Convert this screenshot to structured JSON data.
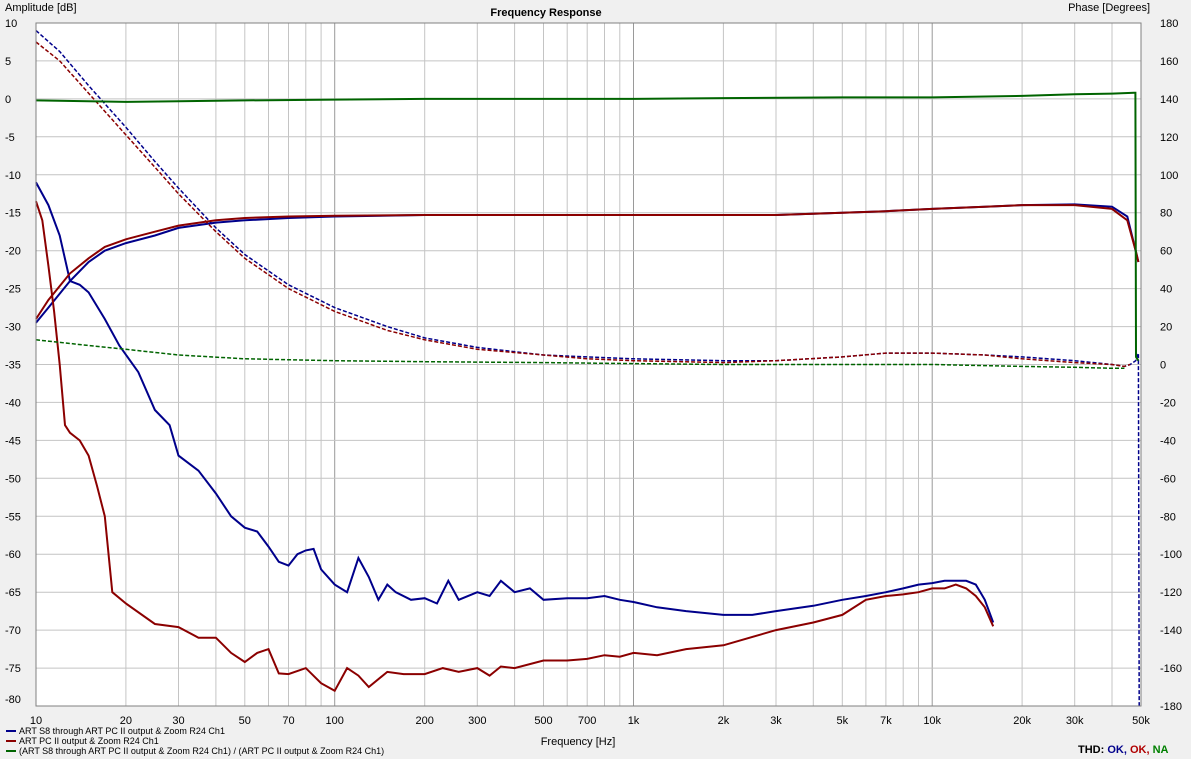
{
  "chart_data": {
    "type": "line",
    "title": "Frequency Response",
    "xlabel": "Frequency [Hz]",
    "ylabel_left": "Amplitude [dB]",
    "ylabel_right": "Phase [Degrees]",
    "x_scale": "log",
    "xlim": [
      10,
      50000
    ],
    "ylim_left": [
      -80,
      10
    ],
    "ylim_right": [
      -180,
      180
    ],
    "grid": true,
    "legend_position": "bottom-left",
    "x_tick_values": [
      10,
      20,
      30,
      50,
      70,
      100,
      200,
      300,
      500,
      700,
      1000,
      2000,
      3000,
      5000,
      7000,
      10000,
      20000,
      30000,
      50000
    ],
    "x_tick_labels": [
      "10",
      "20",
      "30",
      "50",
      "70",
      "100",
      "200",
      "300",
      "500",
      "700",
      "1k",
      "2k",
      "3k",
      "5k",
      "7k",
      "10k",
      "20k",
      "30k",
      "50k"
    ],
    "y_left_ticks": [
      10,
      5,
      0,
      -5,
      -10,
      -15,
      -20,
      -25,
      -30,
      -35,
      -40,
      -45,
      -50,
      -55,
      -60,
      -65,
      -70,
      -75
    ],
    "y_left_bottom_label": "-80",
    "y_right_ticks": [
      180,
      160,
      140,
      120,
      100,
      80,
      60,
      40,
      20,
      0,
      -20,
      -40,
      -60,
      -80,
      -100,
      -120,
      -140,
      -160,
      -180
    ],
    "series": [
      {
        "name": "ART S8 through ART PC II output & Zoom R24 Ch1",
        "color": "#00008b",
        "magnitude": [
          [
            10,
            -29.5
          ],
          [
            11,
            -27.5
          ],
          [
            13,
            -24
          ],
          [
            15,
            -21.5
          ],
          [
            17,
            -20
          ],
          [
            20,
            -19
          ],
          [
            25,
            -18
          ],
          [
            30,
            -17
          ],
          [
            40,
            -16.3
          ],
          [
            50,
            -16
          ],
          [
            70,
            -15.7
          ],
          [
            100,
            -15.5
          ],
          [
            200,
            -15.3
          ],
          [
            500,
            -15.3
          ],
          [
            1000,
            -15.3
          ],
          [
            2000,
            -15.3
          ],
          [
            3000,
            -15.3
          ],
          [
            5000,
            -15
          ],
          [
            7000,
            -14.8
          ],
          [
            10000,
            -14.5
          ],
          [
            15000,
            -14.2
          ],
          [
            20000,
            -14
          ],
          [
            30000,
            -13.9
          ],
          [
            40000,
            -14.2
          ],
          [
            45000,
            -15.5
          ],
          [
            48000,
            -20
          ],
          [
            49000,
            -21.5
          ]
        ],
        "phase": [
          [
            10,
            176
          ],
          [
            12,
            165
          ],
          [
            15,
            147
          ],
          [
            20,
            125
          ],
          [
            25,
            107
          ],
          [
            30,
            93
          ],
          [
            40,
            72
          ],
          [
            50,
            58
          ],
          [
            70,
            42
          ],
          [
            100,
            30
          ],
          [
            150,
            20
          ],
          [
            200,
            14
          ],
          [
            300,
            9
          ],
          [
            500,
            5
          ],
          [
            700,
            4
          ],
          [
            1000,
            3
          ],
          [
            2000,
            2
          ],
          [
            3000,
            2
          ],
          [
            5000,
            4
          ],
          [
            7000,
            6
          ],
          [
            10000,
            6
          ],
          [
            15000,
            5
          ],
          [
            20000,
            4
          ],
          [
            30000,
            2
          ],
          [
            40000,
            0
          ],
          [
            44000,
            -1
          ],
          [
            46000,
            0
          ],
          [
            48000,
            2
          ],
          [
            49000,
            6
          ],
          [
            49300,
            -180
          ]
        ],
        "distortion": [
          [
            10,
            -11
          ],
          [
            11,
            -14
          ],
          [
            12,
            -18
          ],
          [
            13,
            -24
          ],
          [
            14,
            -24.5
          ],
          [
            15,
            -25.5
          ],
          [
            17,
            -29
          ],
          [
            19,
            -32.5
          ],
          [
            22,
            -36
          ],
          [
            25,
            -41
          ],
          [
            28,
            -43
          ],
          [
            30,
            -47
          ],
          [
            35,
            -49
          ],
          [
            40,
            -52
          ],
          [
            45,
            -55
          ],
          [
            50,
            -56.5
          ],
          [
            55,
            -57
          ],
          [
            60,
            -59
          ],
          [
            65,
            -61
          ],
          [
            70,
            -61.5
          ],
          [
            75,
            -60
          ],
          [
            80,
            -59.5
          ],
          [
            85,
            -59.3
          ],
          [
            90,
            -62
          ],
          [
            100,
            -64
          ],
          [
            110,
            -65
          ],
          [
            120,
            -60.5
          ],
          [
            130,
            -63
          ],
          [
            140,
            -66
          ],
          [
            150,
            -64
          ],
          [
            160,
            -65
          ],
          [
            180,
            -66
          ],
          [
            200,
            -65.8
          ],
          [
            220,
            -66.5
          ],
          [
            240,
            -63.5
          ],
          [
            260,
            -66
          ],
          [
            300,
            -65
          ],
          [
            330,
            -65.5
          ],
          [
            360,
            -63.5
          ],
          [
            400,
            -65
          ],
          [
            450,
            -64.5
          ],
          [
            500,
            -66
          ],
          [
            600,
            -65.8
          ],
          [
            700,
            -65.8
          ],
          [
            800,
            -65.5
          ],
          [
            900,
            -66
          ],
          [
            1000,
            -66.3
          ],
          [
            1200,
            -67
          ],
          [
            1500,
            -67.5
          ],
          [
            2000,
            -68
          ],
          [
            2500,
            -68
          ],
          [
            3000,
            -67.5
          ],
          [
            4000,
            -66.8
          ],
          [
            5000,
            -66
          ],
          [
            6000,
            -65.5
          ],
          [
            7000,
            -65
          ],
          [
            8000,
            -64.5
          ],
          [
            9000,
            -64
          ],
          [
            10000,
            -63.8
          ],
          [
            11000,
            -63.5
          ],
          [
            12000,
            -63.5
          ],
          [
            13000,
            -63.5
          ],
          [
            14000,
            -64
          ],
          [
            15000,
            -66
          ],
          [
            16000,
            -69
          ]
        ]
      },
      {
        "name": "ART PC II output & Zoom R24 Ch1",
        "color": "#8b0000",
        "magnitude": [
          [
            10,
            -29
          ],
          [
            11,
            -26.5
          ],
          [
            13,
            -23
          ],
          [
            15,
            -21
          ],
          [
            17,
            -19.5
          ],
          [
            20,
            -18.5
          ],
          [
            25,
            -17.5
          ],
          [
            30,
            -16.7
          ],
          [
            40,
            -16
          ],
          [
            50,
            -15.7
          ],
          [
            70,
            -15.5
          ],
          [
            100,
            -15.4
          ],
          [
            200,
            -15.3
          ],
          [
            500,
            -15.3
          ],
          [
            1000,
            -15.3
          ],
          [
            2000,
            -15.3
          ],
          [
            3000,
            -15.3
          ],
          [
            5000,
            -15
          ],
          [
            7000,
            -14.8
          ],
          [
            10000,
            -14.5
          ],
          [
            15000,
            -14.2
          ],
          [
            20000,
            -14
          ],
          [
            30000,
            -14
          ],
          [
            40000,
            -14.5
          ],
          [
            45000,
            -16
          ],
          [
            48000,
            -20
          ],
          [
            49000,
            -21.5
          ]
        ],
        "phase": [
          [
            10,
            170
          ],
          [
            12,
            160
          ],
          [
            15,
            143
          ],
          [
            20,
            121
          ],
          [
            25,
            104
          ],
          [
            30,
            90
          ],
          [
            40,
            70
          ],
          [
            50,
            56
          ],
          [
            70,
            40
          ],
          [
            100,
            28
          ],
          [
            150,
            18
          ],
          [
            200,
            13
          ],
          [
            300,
            8
          ],
          [
            500,
            5
          ],
          [
            700,
            3
          ],
          [
            1000,
            2
          ],
          [
            2000,
            1
          ],
          [
            3000,
            2
          ],
          [
            5000,
            4
          ],
          [
            7000,
            6
          ],
          [
            10000,
            6
          ],
          [
            15000,
            5
          ],
          [
            20000,
            3
          ],
          [
            30000,
            1
          ],
          [
            40000,
            0
          ],
          [
            44000,
            -1
          ],
          [
            46000,
            0
          ]
        ],
        "distortion": [
          [
            10,
            -13.5
          ],
          [
            10.5,
            -16
          ],
          [
            11,
            -22
          ],
          [
            11.5,
            -28
          ],
          [
            12,
            -35
          ],
          [
            12.5,
            -43
          ],
          [
            13,
            -44
          ],
          [
            14,
            -45
          ],
          [
            15,
            -47
          ],
          [
            16,
            -51
          ],
          [
            17,
            -55
          ],
          [
            18,
            -65
          ],
          [
            20,
            -66.5
          ],
          [
            25,
            -69.2
          ],
          [
            30,
            -69.6
          ],
          [
            35,
            -71
          ],
          [
            40,
            -71
          ],
          [
            45,
            -73
          ],
          [
            50,
            -74.2
          ],
          [
            55,
            -73
          ],
          [
            60,
            -72.5
          ],
          [
            65,
            -75.7
          ],
          [
            70,
            -75.8
          ],
          [
            80,
            -75
          ],
          [
            90,
            -77
          ],
          [
            100,
            -78
          ],
          [
            110,
            -75
          ],
          [
            120,
            -76
          ],
          [
            130,
            -77.5
          ],
          [
            150,
            -75.5
          ],
          [
            170,
            -75.8
          ],
          [
            200,
            -75.8
          ],
          [
            230,
            -75
          ],
          [
            260,
            -75.5
          ],
          [
            300,
            -75
          ],
          [
            330,
            -76
          ],
          [
            360,
            -74.8
          ],
          [
            400,
            -75
          ],
          [
            500,
            -74
          ],
          [
            600,
            -74
          ],
          [
            700,
            -73.8
          ],
          [
            800,
            -73.3
          ],
          [
            900,
            -73.5
          ],
          [
            1000,
            -73
          ],
          [
            1200,
            -73.3
          ],
          [
            1500,
            -72.5
          ],
          [
            2000,
            -72
          ],
          [
            3000,
            -70
          ],
          [
            4000,
            -69
          ],
          [
            5000,
            -68
          ],
          [
            6000,
            -66
          ],
          [
            7000,
            -65.5
          ],
          [
            8000,
            -65.3
          ],
          [
            9000,
            -65
          ],
          [
            10000,
            -64.5
          ],
          [
            11000,
            -64.5
          ],
          [
            12000,
            -64
          ],
          [
            13000,
            -64.5
          ],
          [
            14000,
            -65.5
          ],
          [
            15000,
            -67
          ],
          [
            16000,
            -69.5
          ]
        ]
      },
      {
        "name": "(ART S8 through ART PC II output & Zoom R24 Ch1) / (ART PC II output & Zoom R24 Ch1)",
        "color": "#006400",
        "magnitude": [
          [
            10,
            -0.2
          ],
          [
            20,
            -0.4
          ],
          [
            30,
            -0.3
          ],
          [
            50,
            -0.2
          ],
          [
            100,
            -0.1
          ],
          [
            200,
            0
          ],
          [
            500,
            0
          ],
          [
            1000,
            0
          ],
          [
            2000,
            0.1
          ],
          [
            5000,
            0.2
          ],
          [
            10000,
            0.2
          ],
          [
            20000,
            0.4
          ],
          [
            30000,
            0.6
          ],
          [
            40000,
            0.7
          ],
          [
            47500,
            0.8
          ],
          [
            47900,
            0.8
          ],
          [
            48100,
            -34
          ],
          [
            49000,
            -34.5
          ]
        ],
        "phase": [
          [
            10,
            13
          ],
          [
            15,
            10
          ],
          [
            20,
            8
          ],
          [
            30,
            5
          ],
          [
            50,
            3
          ],
          [
            100,
            2
          ],
          [
            200,
            1.5
          ],
          [
            500,
            1
          ],
          [
            1000,
            0.5
          ],
          [
            2000,
            0
          ],
          [
            5000,
            0
          ],
          [
            10000,
            0
          ],
          [
            20000,
            -1
          ],
          [
            30000,
            -1.5
          ],
          [
            40000,
            -2
          ],
          [
            44000,
            -2
          ]
        ]
      }
    ],
    "status_label": "THD:",
    "status_values": [
      {
        "text": "OK,",
        "color": "#00008b"
      },
      {
        "text": "OK,",
        "color": "#b00000"
      },
      {
        "text": "NA",
        "color": "#008000"
      }
    ]
  }
}
